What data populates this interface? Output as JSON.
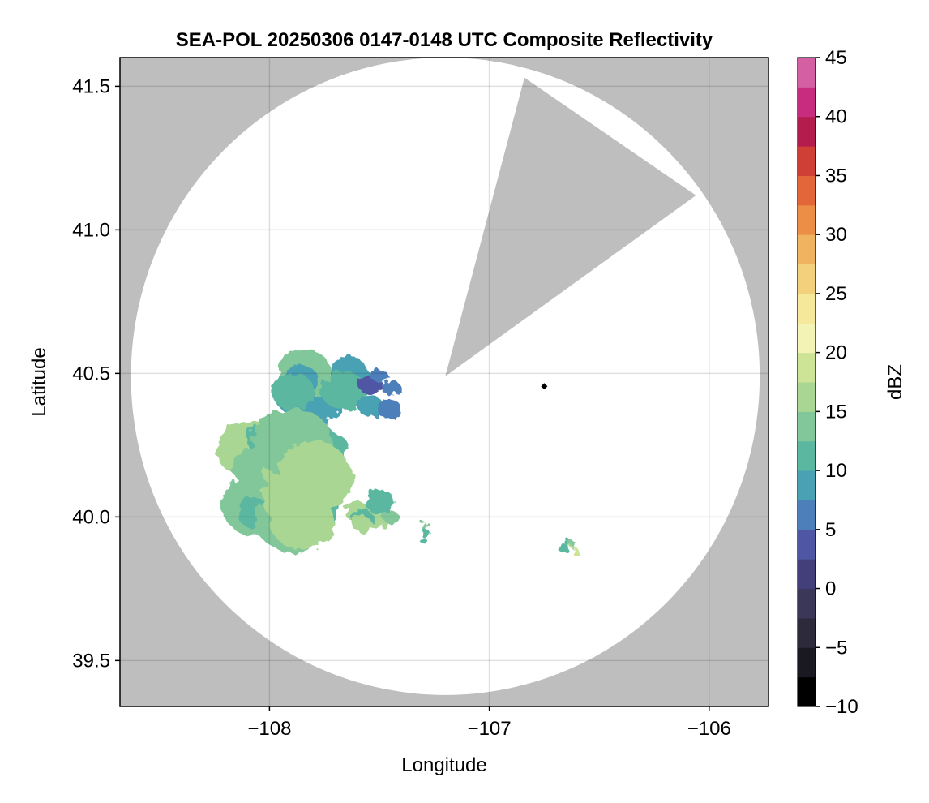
{
  "chart_data": {
    "type": "heatmap",
    "title": "SEA-POL 20250306 0147-0148 UTC Composite Reflectivity",
    "xlabel": "Longitude",
    "ylabel": "Latitude",
    "xlim": [
      -108.68,
      -105.73
    ],
    "ylim": [
      39.34,
      41.6
    ],
    "x_ticks": [
      -108,
      -107,
      -106
    ],
    "x_tick_labels": [
      "−108",
      "−107",
      "−106"
    ],
    "y_ticks": [
      39.5,
      40.0,
      40.5,
      41.0,
      41.5
    ],
    "y_tick_labels": [
      "39.5",
      "40.0",
      "40.5",
      "41.0",
      "41.5"
    ],
    "grid": true,
    "background_color": "#bebebe",
    "coverage_color": "#ffffff",
    "coverage": {
      "center": [
        -107.2,
        40.49
      ],
      "radius_lon": 1.43,
      "radius_lat": 1.11,
      "blocked_sector": [
        [
          -107.2,
          40.49
        ],
        [
          -106.84,
          41.53
        ],
        [
          -106.06,
          41.12
        ]
      ]
    },
    "radar_marker": {
      "lon": -106.75,
      "lat": 40.455,
      "color": "#000000"
    },
    "echoes": [
      {
        "name_hint": "north cell",
        "centroid": [
          -107.77,
          40.4
        ],
        "extent_lon": [
          -107.98,
          -107.43
        ],
        "extent_lat": [
          40.29,
          40.55
        ],
        "dbz": 10
      },
      {
        "name_hint": "north cell east",
        "centroid": [
          -107.5,
          40.42
        ],
        "extent_lon": [
          -107.6,
          -107.42
        ],
        "extent_lat": [
          40.33,
          40.52
        ],
        "dbz": 6
      },
      {
        "name_hint": "southwest complex",
        "centroid": [
          -107.98,
          40.12
        ],
        "extent_lon": [
          -108.17,
          -107.57
        ],
        "extent_lat": [
          39.93,
          40.33
        ],
        "dbz": 14
      },
      {
        "name_hint": "southern cell",
        "centroid": [
          -107.55,
          39.98
        ],
        "extent_lon": [
          -107.64,
          -107.41
        ],
        "extent_lat": [
          39.9,
          40.1
        ],
        "dbz": 14
      },
      {
        "name_hint": "small south cell",
        "centroid": [
          -107.29,
          39.94
        ],
        "extent_lon": [
          -107.32,
          -107.26
        ],
        "extent_lat": [
          39.9,
          39.99
        ],
        "dbz": 13
      },
      {
        "name_hint": "southeast speck",
        "centroid": [
          -106.64,
          39.9
        ],
        "extent_lon": [
          -106.68,
          -106.59
        ],
        "extent_lat": [
          39.87,
          39.93
        ],
        "dbz": 15
      }
    ],
    "colorbar": {
      "label": "dBZ",
      "min": -10,
      "max": 45,
      "ticks": [
        -10,
        -5,
        0,
        5,
        10,
        15,
        20,
        25,
        30,
        35,
        40,
        45
      ],
      "tick_labels": [
        "−10",
        "−5",
        "0",
        "5",
        "10",
        "15",
        "20",
        "25",
        "30",
        "35",
        "40",
        "45"
      ],
      "step": 2.5,
      "colors": [
        "#000000",
        "#1a1820",
        "#2d2a3c",
        "#3a3758",
        "#433f7a",
        "#4f57a4",
        "#4d7fbb",
        "#4aa1b4",
        "#5bb7a0",
        "#82c79a",
        "#a9d693",
        "#cde496",
        "#f2f3b4",
        "#f5e89a",
        "#f3d17c",
        "#f0b35f",
        "#ec8e45",
        "#e3663a",
        "#d03f36",
        "#b31c4c",
        "#c72c7e",
        "#d45fa3",
        "#e699c8",
        "#c593c9",
        "#a474b3",
        "#7f4f99",
        "#5c2b7a",
        "#3d0a53"
      ]
    }
  }
}
